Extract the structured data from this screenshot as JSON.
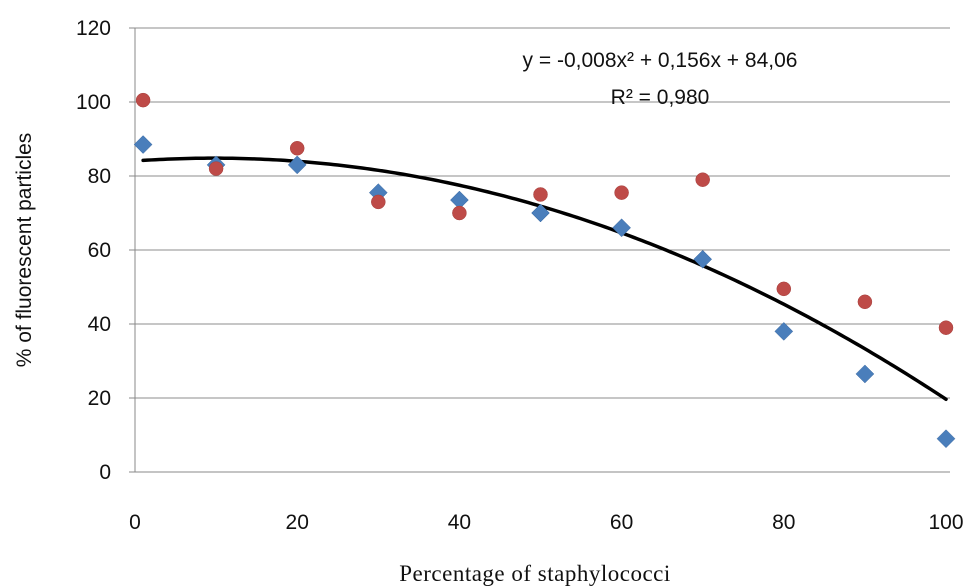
{
  "chart_data": {
    "type": "scatter",
    "title": "",
    "xlabel": "Percentage of staphylococci",
    "ylabel": "% of fluorescent particles",
    "xlim": [
      0,
      100
    ],
    "ylim": [
      0,
      120
    ],
    "x_ticks": [
      0,
      20,
      40,
      60,
      80,
      100
    ],
    "y_ticks": [
      0,
      20,
      40,
      60,
      80,
      100,
      120
    ],
    "grid": "horizontal",
    "legend": "none",
    "series": [
      {
        "marker": "diamond",
        "color": "#4a7ebb",
        "x": [
          1,
          10,
          20,
          30,
          40,
          50,
          60,
          70,
          80,
          90,
          100
        ],
        "y": [
          88.5,
          83,
          83,
          75.5,
          73.5,
          70,
          66,
          57.5,
          38,
          26.5,
          9
        ]
      },
      {
        "marker": "circle",
        "color": "#be4b48",
        "x": [
          1,
          10,
          20,
          30,
          40,
          50,
          60,
          70,
          80,
          90,
          100
        ],
        "y": [
          100.5,
          82,
          87.5,
          73,
          70,
          75,
          75.5,
          79,
          49.5,
          46,
          39
        ]
      }
    ],
    "trendline": {
      "type": "polynomial",
      "color": "#000000",
      "coefficients": [
        -0.008,
        0.156,
        84.06
      ],
      "x_range": [
        1,
        100
      ],
      "equation": "y = -0,008x² + 0,156x + 84,06",
      "r2": "R² = 0,980"
    }
  }
}
